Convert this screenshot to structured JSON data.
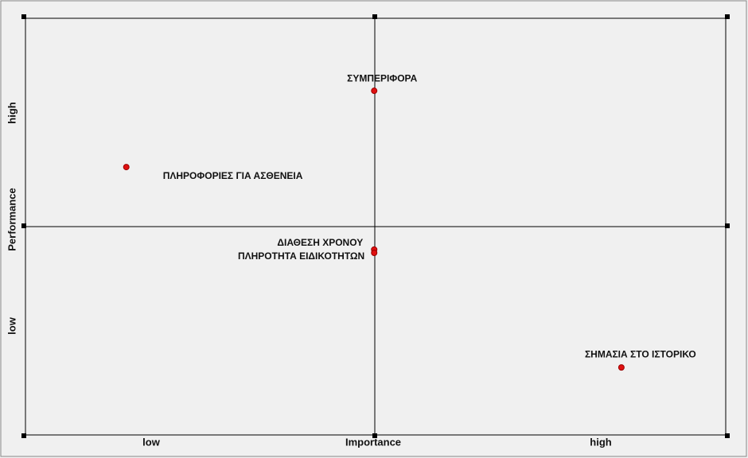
{
  "chart_data": {
    "type": "scatter",
    "xlabel": "Importance",
    "ylabel": "Performance",
    "x_low_label": "low",
    "x_high_label": "high",
    "y_low_label": "low",
    "y_high_label": "high",
    "xlim": [
      0,
      1
    ],
    "ylim": [
      0,
      1
    ],
    "series": [
      {
        "name": "ΣΥΜΠΕΡΙΦΟΡΑ",
        "color": "#e01010",
        "x": [
          0.498
        ],
        "values": [
          0.826
        ]
      },
      {
        "name": "ΠΛΗΡΟΦΟΡΙΕΣ ΓΙΑ ΑΣΘΕΝΕΙΑ",
        "color": "#e01010",
        "x": [
          0.144
        ],
        "values": [
          0.643
        ]
      },
      {
        "name": "ΔΙΑΘΕΣΗ ΧΡΟΝΟΥ",
        "color": "#e01010",
        "x": [
          0.498
        ],
        "values": [
          0.445
        ]
      },
      {
        "name": "ΠΛΗΡΟΤΗΤΑ ΕΙΔΙΚΟΤΗΤΩΝ",
        "color": "#e01010",
        "x": [
          0.498
        ],
        "values": [
          0.437
        ]
      },
      {
        "name": "ΣΗΜΑΣΙΑ ΣΤΟ ΙΣΤΟΡΙΚΟ",
        "color": "#e01010",
        "x": [
          0.851
        ],
        "values": [
          0.162
        ]
      }
    ]
  }
}
